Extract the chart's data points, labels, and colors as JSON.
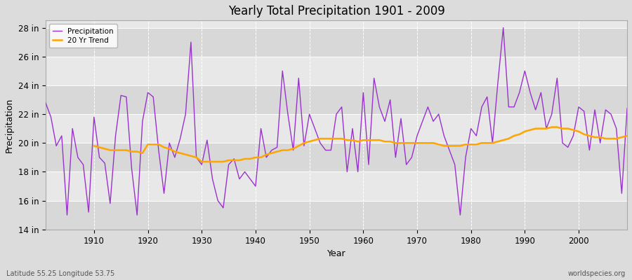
{
  "title": "Yearly Total Precipitation 1901 - 2009",
  "xlabel": "Year",
  "ylabel": "Precipitation",
  "subtitle": "Latitude 55.25 Longitude 53.75",
  "watermark": "worldspecies.org",
  "ylim": [
    14,
    28.5
  ],
  "yticks": [
    14,
    16,
    18,
    20,
    22,
    24,
    26,
    28
  ],
  "ytick_labels": [
    "14 in",
    "16 in",
    "18 in",
    "20 in",
    "22 in",
    "24 in",
    "26 in",
    "28 in"
  ],
  "xticks": [
    1910,
    1920,
    1930,
    1940,
    1950,
    1960,
    1970,
    1980,
    1990,
    2000
  ],
  "xlim": [
    1901,
    2009
  ],
  "precip_color": "#9933CC",
  "trend_color": "#FFA500",
  "fig_bg_color": "#DCDCDC",
  "plot_bg_light": "#E8E8E8",
  "plot_bg_dark": "#D8D8D8",
  "legend_labels": [
    "Precipitation",
    "20 Yr Trend"
  ],
  "years": [
    1901,
    1902,
    1903,
    1904,
    1905,
    1906,
    1907,
    1908,
    1909,
    1910,
    1911,
    1912,
    1913,
    1914,
    1915,
    1916,
    1917,
    1918,
    1919,
    1920,
    1921,
    1922,
    1923,
    1924,
    1925,
    1926,
    1927,
    1928,
    1929,
    1930,
    1931,
    1932,
    1933,
    1934,
    1935,
    1936,
    1937,
    1938,
    1939,
    1940,
    1941,
    1942,
    1943,
    1944,
    1945,
    1946,
    1947,
    1948,
    1949,
    1950,
    1951,
    1952,
    1953,
    1954,
    1955,
    1956,
    1957,
    1958,
    1959,
    1960,
    1961,
    1962,
    1963,
    1964,
    1965,
    1966,
    1967,
    1968,
    1969,
    1970,
    1971,
    1972,
    1973,
    1974,
    1975,
    1976,
    1977,
    1978,
    1979,
    1980,
    1981,
    1982,
    1983,
    1984,
    1985,
    1986,
    1987,
    1988,
    1989,
    1990,
    1991,
    1992,
    1993,
    1994,
    1995,
    1996,
    1997,
    1998,
    1999,
    2000,
    2001,
    2002,
    2003,
    2004,
    2005,
    2006,
    2007,
    2008,
    2009
  ],
  "precip": [
    22.8,
    21.8,
    19.8,
    20.5,
    15.0,
    21.0,
    19.0,
    18.5,
    15.2,
    21.8,
    19.0,
    18.6,
    15.8,
    20.5,
    23.3,
    23.2,
    18.2,
    15.0,
    21.5,
    23.5,
    23.2,
    19.5,
    16.5,
    20.0,
    19.0,
    20.3,
    22.0,
    27.0,
    19.0,
    18.5,
    20.2,
    17.5,
    16.0,
    15.5,
    18.5,
    18.9,
    17.5,
    18.0,
    17.5,
    17.0,
    21.0,
    19.0,
    19.5,
    19.7,
    25.0,
    22.0,
    19.5,
    24.5,
    19.8,
    22.0,
    21.0,
    20.0,
    19.5,
    19.5,
    22.0,
    22.5,
    18.0,
    21.0,
    18.0,
    23.5,
    18.5,
    24.5,
    22.5,
    21.5,
    23.0,
    19.0,
    21.7,
    18.5,
    19.0,
    20.5,
    21.5,
    22.5,
    21.5,
    22.0,
    20.5,
    19.5,
    18.5,
    15.0,
    19.0,
    21.0,
    20.5,
    22.5,
    23.2,
    20.0,
    24.2,
    28.0,
    22.5,
    22.5,
    23.5,
    25.0,
    23.5,
    22.3,
    23.5,
    21.0,
    22.0,
    24.5,
    20.0,
    19.7,
    20.5,
    22.5,
    22.2,
    19.5,
    22.3,
    20.0,
    22.3,
    22.0,
    21.0,
    16.5,
    22.4
  ],
  "trend": [
    null,
    null,
    null,
    null,
    null,
    null,
    null,
    null,
    null,
    19.8,
    19.7,
    19.6,
    19.5,
    19.5,
    19.5,
    19.5,
    19.4,
    19.4,
    19.3,
    19.9,
    19.9,
    19.9,
    19.7,
    19.6,
    19.4,
    19.3,
    19.2,
    19.1,
    19.0,
    18.7,
    18.7,
    18.7,
    18.7,
    18.7,
    18.8,
    18.8,
    18.8,
    18.9,
    18.9,
    19.0,
    19.0,
    19.2,
    19.3,
    19.4,
    19.5,
    19.5,
    19.6,
    19.8,
    20.0,
    20.1,
    20.2,
    20.3,
    20.3,
    20.3,
    20.3,
    20.3,
    20.2,
    20.2,
    20.1,
    20.2,
    20.2,
    20.2,
    20.2,
    20.1,
    20.1,
    20.0,
    20.0,
    20.0,
    20.0,
    20.0,
    20.0,
    20.0,
    20.0,
    19.9,
    19.8,
    19.8,
    19.8,
    19.8,
    19.9,
    19.9,
    19.9,
    20.0,
    20.0,
    20.0,
    20.1,
    20.2,
    20.3,
    20.5,
    20.6,
    20.8,
    20.9,
    21.0,
    21.0,
    21.0,
    21.1,
    21.1,
    21.0,
    21.0,
    20.9,
    20.8,
    20.6,
    20.5,
    20.4,
    20.4,
    20.3,
    20.3,
    20.3,
    20.4,
    20.5
  ]
}
